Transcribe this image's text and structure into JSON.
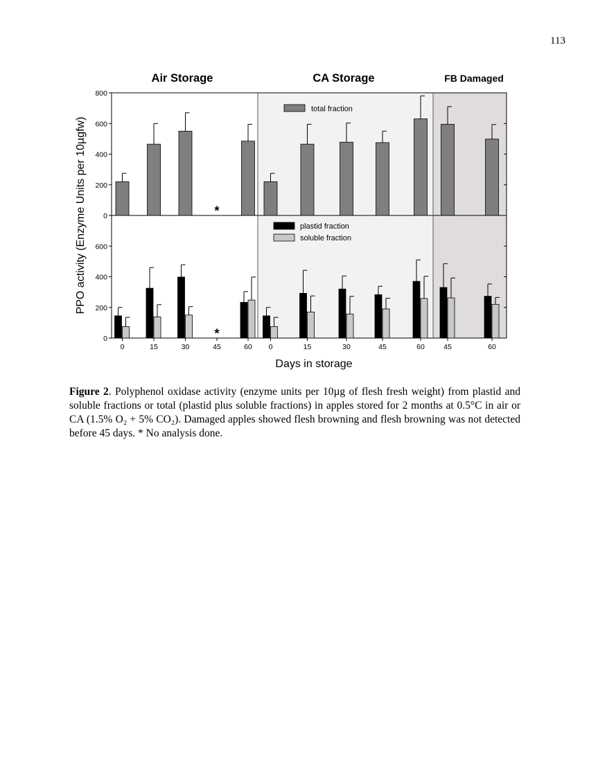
{
  "page_number": "113",
  "caption": {
    "label": "Figure 2",
    "text": ". Polyphenol oxidase activity (enzyme units per 10µg of flesh fresh weight) from plastid and soluble fractions or total (plastid plus soluble fractions) in apples stored for 2 months at 0.5°C in air or CA (1.5% O₂ + 5% CO₂). Damaged apples showed flesh browning and flesh browning was not detected before 45 days. * No analysis done."
  },
  "colors": {
    "total": "#7f7f7f",
    "plastid": "#000000",
    "soluble": "#c8c8c8",
    "ca_background": "#f2f2f2",
    "fb_background": "#e0dcdc"
  },
  "chart_data": {
    "type": "bar",
    "ylabel": "PPO activity (Enzyme Units per 10µgfw)",
    "xlabel": "Days in storage",
    "panels": [
      {
        "name": "Air Storage",
        "categories": [
          "0",
          "15",
          "30",
          "45",
          "60"
        ]
      },
      {
        "name": "CA Storage",
        "categories": [
          "0",
          "15",
          "30",
          "45",
          "60"
        ]
      },
      {
        "name": "FB Damaged",
        "categories": [
          "45",
          "60"
        ]
      }
    ],
    "top": {
      "ylim": [
        0,
        800
      ],
      "yticks": [
        "0",
        "200",
        "400",
        "600",
        "800"
      ],
      "legend": [
        "total fraction"
      ],
      "series": [
        {
          "name": "total fraction",
          "values": [
            {
              "panel": 0,
              "cat": 0,
              "value": 220,
              "err": 55
            },
            {
              "panel": 0,
              "cat": 1,
              "value": 465,
              "err": 135
            },
            {
              "panel": 0,
              "cat": 2,
              "value": 550,
              "err": 120
            },
            {
              "panel": 0,
              "cat": 4,
              "value": 485,
              "err": 110
            },
            {
              "panel": 1,
              "cat": 0,
              "value": 220,
              "err": 55
            },
            {
              "panel": 1,
              "cat": 1,
              "value": 465,
              "err": 130
            },
            {
              "panel": 1,
              "cat": 2,
              "value": 478,
              "err": 125
            },
            {
              "panel": 1,
              "cat": 3,
              "value": 475,
              "err": 75
            },
            {
              "panel": 1,
              "cat": 4,
              "value": 630,
              "err": 150
            },
            {
              "panel": 2,
              "cat": 0,
              "value": 595,
              "err": 115
            },
            {
              "panel": 2,
              "cat": 1,
              "value": 498,
              "err": 95
            }
          ]
        }
      ],
      "annotations": [
        {
          "panel": 0,
          "cat": 3,
          "text": "*"
        }
      ]
    },
    "bottom": {
      "ylim": [
        0,
        800
      ],
      "yticks": [
        "0",
        "200",
        "400",
        "600"
      ],
      "legend": [
        "plastid fraction",
        "soluble fraction"
      ],
      "series": [
        {
          "name": "plastid fraction",
          "values": [
            {
              "panel": 0,
              "cat": 0,
              "value": 145,
              "err": 55
            },
            {
              "panel": 0,
              "cat": 1,
              "value": 325,
              "err": 135
            },
            {
              "panel": 0,
              "cat": 2,
              "value": 398,
              "err": 80
            },
            {
              "panel": 0,
              "cat": 4,
              "value": 233,
              "err": 70
            },
            {
              "panel": 1,
              "cat": 0,
              "value": 145,
              "err": 55
            },
            {
              "panel": 1,
              "cat": 1,
              "value": 292,
              "err": 150
            },
            {
              "panel": 1,
              "cat": 2,
              "value": 320,
              "err": 85
            },
            {
              "panel": 1,
              "cat": 3,
              "value": 283,
              "err": 55
            },
            {
              "panel": 1,
              "cat": 4,
              "value": 370,
              "err": 140
            },
            {
              "panel": 2,
              "cat": 0,
              "value": 330,
              "err": 155
            },
            {
              "panel": 2,
              "cat": 1,
              "value": 273,
              "err": 80
            }
          ]
        },
        {
          "name": "soluble fraction",
          "values": [
            {
              "panel": 0,
              "cat": 0,
              "value": 75,
              "err": 60
            },
            {
              "panel": 0,
              "cat": 1,
              "value": 138,
              "err": 80
            },
            {
              "panel": 0,
              "cat": 2,
              "value": 150,
              "err": 55
            },
            {
              "panel": 0,
              "cat": 4,
              "value": 248,
              "err": 150
            },
            {
              "panel": 1,
              "cat": 0,
              "value": 75,
              "err": 60
            },
            {
              "panel": 1,
              "cat": 1,
              "value": 170,
              "err": 105
            },
            {
              "panel": 1,
              "cat": 2,
              "value": 157,
              "err": 115
            },
            {
              "panel": 1,
              "cat": 3,
              "value": 190,
              "err": 70
            },
            {
              "panel": 1,
              "cat": 4,
              "value": 258,
              "err": 145
            },
            {
              "panel": 2,
              "cat": 0,
              "value": 262,
              "err": 130
            },
            {
              "panel": 2,
              "cat": 1,
              "value": 220,
              "err": 45
            }
          ]
        }
      ],
      "annotations": [
        {
          "panel": 0,
          "cat": 3,
          "text": "*"
        }
      ]
    }
  }
}
